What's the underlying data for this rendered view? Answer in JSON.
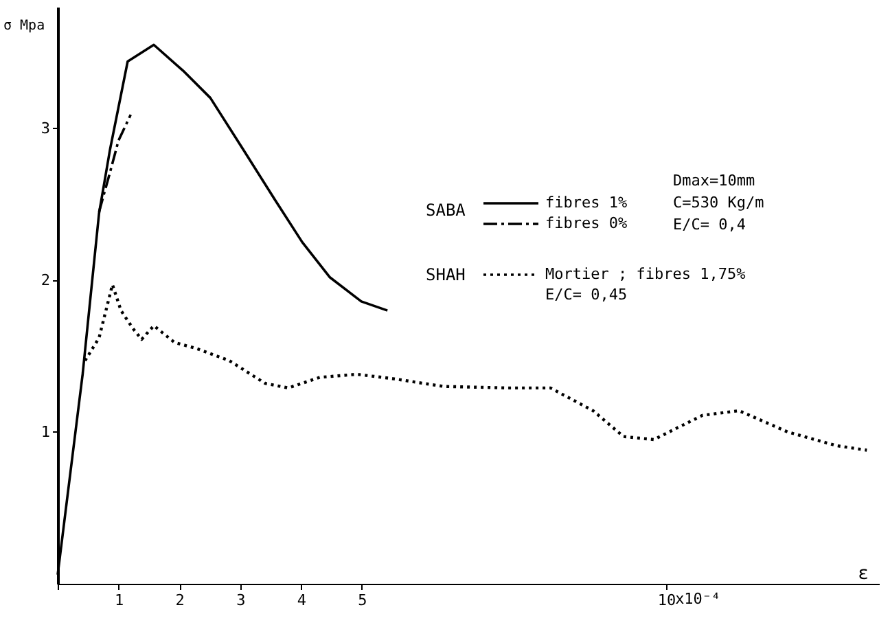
{
  "chart_data": {
    "type": "line",
    "xlabel": "ε",
    "ylabel": "σ Mpa",
    "xlim": [
      0,
      13.5
    ],
    "ylim": [
      0,
      3.8
    ],
    "xticks": [
      {
        "value": 0,
        "label": null
      },
      1,
      2,
      3,
      4,
      5,
      10
    ],
    "yticks": [
      1,
      2,
      3
    ],
    "grid": false,
    "legend": "top right",
    "marker": "none",
    "series": [
      {
        "name": "fibres 1%",
        "color": "#000000",
        "line_style": "solid",
        "x": [
          0,
          0.41,
          0.68,
          0.86,
          1.15,
          1.58,
          2.06,
          2.51,
          3.05,
          3.57,
          4.02,
          4.47,
          4.99,
          5.42
        ],
        "values": [
          0.06,
          1.38,
          2.44,
          2.86,
          3.44,
          3.55,
          3.38,
          3.2,
          2.86,
          2.53,
          2.25,
          2.02,
          1.86,
          1.8
        ]
      },
      {
        "name": "fibres 0%",
        "color": "#000000",
        "line_style": "dashed",
        "x": [
          0.68,
          0.86,
          1.0,
          1.2
        ],
        "values": [
          2.45,
          2.71,
          2.92,
          3.09
        ]
      },
      {
        "name": "Mortier ; fibres 1,75%",
        "color": "#000000",
        "line_style": "dotted",
        "x": [
          0.45,
          0.68,
          0.9,
          1.04,
          1.24,
          1.38,
          1.58,
          1.92,
          2.28,
          2.82,
          3.41,
          3.79,
          4.31,
          4.92,
          5.53,
          6.34,
          7.4,
          8.1,
          8.8,
          9.3,
          9.8,
          10.6,
          11.2,
          12.0,
          12.8,
          13.3
        ],
        "values": [
          1.47,
          1.62,
          1.97,
          1.8,
          1.68,
          1.61,
          1.7,
          1.59,
          1.55,
          1.47,
          1.32,
          1.29,
          1.36,
          1.38,
          1.35,
          1.3,
          1.29,
          1.29,
          1.14,
          0.97,
          0.95,
          1.11,
          1.14,
          1.0,
          0.91,
          0.88
        ]
      }
    ],
    "annotations": [
      "SABA",
      "Dmax=10mm",
      "C=530 Kg/m",
      "E/C= 0,4",
      "SHAH",
      "E/C= 0,45",
      "x10⁻⁴"
    ]
  }
}
